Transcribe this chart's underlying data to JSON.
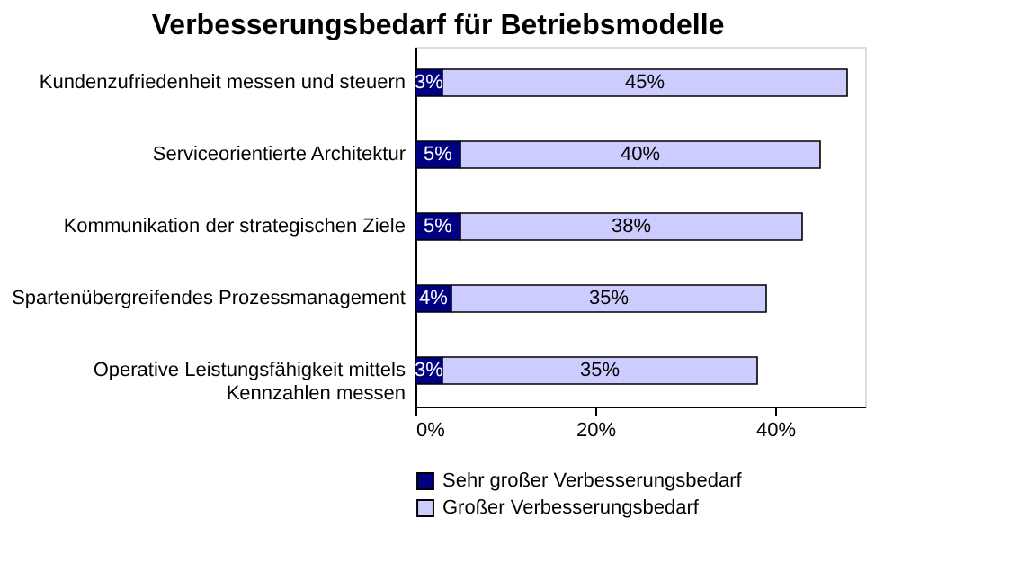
{
  "chart_data": {
    "type": "bar",
    "orientation": "horizontal",
    "stacked": true,
    "title": "Verbesserungsbedarf für Betriebsmodelle",
    "categories": [
      "Kundenzufriedenheit messen und steuern",
      "Serviceorientierte Architektur",
      "Kommunikation der strategischen Ziele",
      "Spartenübergreifendes Prozessmanagement",
      "Operative Leistungsfähigkeit mittels Kennzahlen messen"
    ],
    "series": [
      {
        "name": "Sehr großer Verbesserungsbedarf",
        "color": "#000080",
        "values": [
          3,
          5,
          5,
          4,
          3
        ],
        "value_labels": [
          "3%",
          "5%",
          "5%",
          "4%",
          "3%"
        ]
      },
      {
        "name": "Großer Verbesserungsbedarf",
        "color": "#ccccff",
        "values": [
          45,
          40,
          38,
          35,
          35
        ],
        "value_labels": [
          "45%",
          "40%",
          "38%",
          "35%",
          "35%"
        ]
      }
    ],
    "xlim": [
      0,
      50
    ],
    "xticks": [
      {
        "value": 0,
        "label": "0%"
      },
      {
        "value": 20,
        "label": "20%"
      },
      {
        "value": 40,
        "label": "40%"
      }
    ],
    "legend": "bottom left",
    "grid": false
  }
}
